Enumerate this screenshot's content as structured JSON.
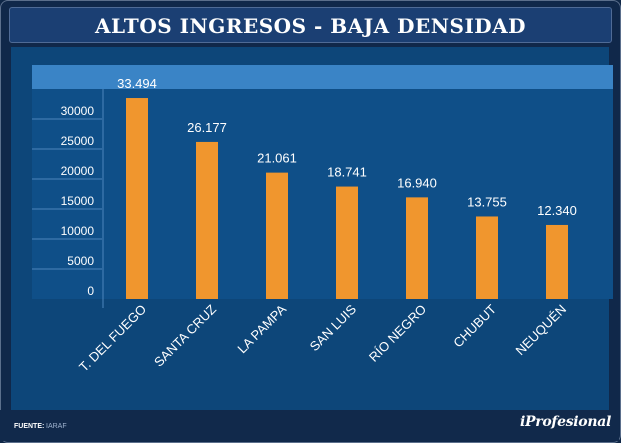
{
  "header": {
    "title": "ALTOS INGRESOS - BAJA DENSIDAD"
  },
  "footer": {
    "source_label": "FUENTE:",
    "source_value": "IARAF",
    "logo_text": "iProfesional"
  },
  "colors": {
    "bar": "#f0962e",
    "plot_bg": "#0f4f88",
    "panel_bg": "#0d4679",
    "header_strip": "#3a84c6",
    "frame_bg": "#10284a"
  },
  "chart_data": {
    "type": "bar",
    "title": "ALTOS INGRESOS - BAJA DENSIDAD",
    "xlabel": "",
    "ylabel": "",
    "ylim": [
      0,
      35000
    ],
    "yticks": [
      0,
      5000,
      10000,
      15000,
      20000,
      25000,
      30000
    ],
    "ytick_labels": [
      "0",
      "5000",
      "10000",
      "15000",
      "20000",
      "25000",
      "30000"
    ],
    "grid": true,
    "categories": [
      "T. DEL FUEGO",
      "SANTA CRUZ",
      "LA PAMPA",
      "SAN LUIS",
      "RÍO NEGRO",
      "CHUBUT",
      "NEUQUÉN"
    ],
    "values": [
      33494,
      26177,
      21061,
      18741,
      16940,
      13755,
      12340
    ],
    "value_labels": [
      "33.494",
      "26.177",
      "21.061",
      "18.741",
      "16.940",
      "13.755",
      "12.340"
    ]
  }
}
